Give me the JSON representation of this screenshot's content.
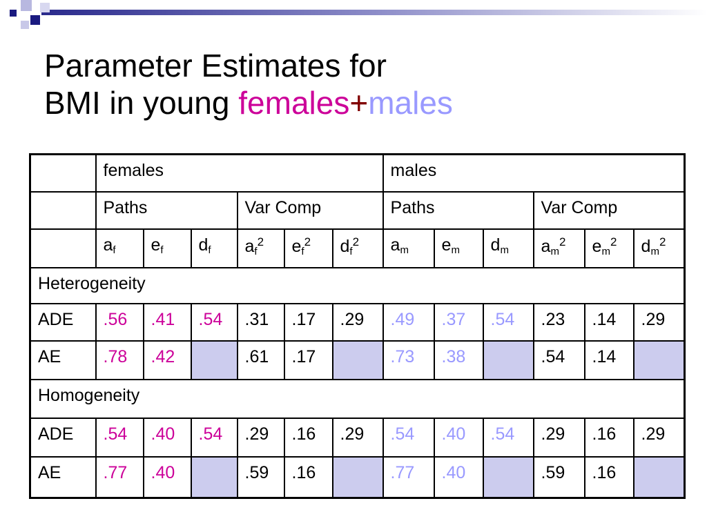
{
  "title": {
    "line1": "Parameter Estimates for",
    "line2": "BMI in young ",
    "females": "females",
    "plus": "+",
    "males": "males"
  },
  "table": {
    "groups": [
      "females",
      "males"
    ],
    "subgroups": [
      "Paths",
      "Var Comp",
      "Paths",
      "Var Comp"
    ],
    "params": [
      {
        "base": "a",
        "sub": "f"
      },
      {
        "base": "e",
        "sub": "f"
      },
      {
        "base": "d",
        "sub": "f"
      },
      {
        "base": "a",
        "sub": "f",
        "sup": "2"
      },
      {
        "base": "e",
        "sub": "f",
        "sup": "2"
      },
      {
        "base": "d",
        "sub": "f",
        "sup": "2"
      },
      {
        "base": "a",
        "sub": "m"
      },
      {
        "base": "e",
        "sub": "m"
      },
      {
        "base": "d",
        "sub": "m"
      },
      {
        "base": "a",
        "sub": "m",
        "sup": "2"
      },
      {
        "base": "e",
        "sub": "m",
        "sup": "2"
      },
      {
        "base": "d",
        "sub": "m",
        "sup": "2"
      }
    ],
    "sections": [
      {
        "label": "Heterogeneity",
        "rows": [
          {
            "model": "ADE",
            "values": [
              ".56",
              ".41",
              ".54",
              ".31",
              ".17",
              ".29",
              ".49",
              ".37",
              ".54",
              ".23",
              ".14",
              ".29"
            ]
          },
          {
            "model": "AE",
            "values": [
              ".78",
              ".42",
              null,
              ".61",
              ".17",
              null,
              ".73",
              ".38",
              null,
              ".54",
              ".14",
              null
            ]
          }
        ]
      },
      {
        "label": "Homogeneity",
        "rows": [
          {
            "model": "ADE",
            "values": [
              ".54",
              ".40",
              ".54",
              ".29",
              ".16",
              ".29",
              ".54",
              ".40",
              ".54",
              ".29",
              ".16",
              ".29"
            ]
          },
          {
            "model": "AE",
            "values": [
              ".77",
              ".40",
              null,
              ".59",
              ".16",
              null,
              ".77",
              ".40",
              null,
              ".59",
              ".16",
              null
            ]
          }
        ]
      }
    ]
  }
}
